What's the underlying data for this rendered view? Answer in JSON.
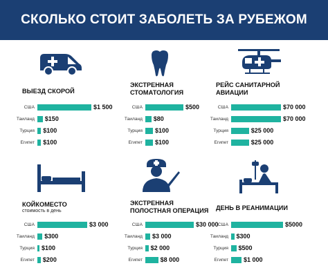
{
  "title": "СКОЛЬКО СТОИТ ЗАБОЛЕТЬ ЗА РУБЕЖОМ",
  "colors": {
    "banner": "#1b3f73",
    "bar": "#1fb3a0",
    "icon": "#1b3f73"
  },
  "chart_data": [
    {
      "type": "bar",
      "title": "ВЫЕЗД СКОРОЙ",
      "subtitle": "",
      "icon": "ambulance-icon",
      "categories": [
        "США",
        "Таиланд",
        "Турция",
        "Египет"
      ],
      "values": [
        1500,
        150,
        100,
        100
      ],
      "value_labels": [
        "$1 500",
        "$150",
        "$100",
        "$100"
      ]
    },
    {
      "type": "bar",
      "title": "ЭКСТРЕННАЯ СТОМАТОЛОГИЯ",
      "subtitle": "",
      "icon": "tooth-icon",
      "categories": [
        "США",
        "Таиланд",
        "Турция",
        "Египет"
      ],
      "values": [
        500,
        80,
        100,
        100
      ],
      "value_labels": [
        "$500",
        "$80",
        "$100",
        "$100"
      ]
    },
    {
      "type": "bar",
      "title": "РЕЙС САНИТАРНОЙ АВИАЦИИ",
      "subtitle": "",
      "icon": "helicopter-icon",
      "categories": [
        "США",
        "Таиланд",
        "Турция",
        "Египет"
      ],
      "values": [
        70000,
        70000,
        25000,
        25000
      ],
      "value_labels": [
        "$70 000",
        "$70 000",
        "$25 000",
        "$25 000"
      ]
    },
    {
      "type": "bar",
      "title": "КОЙКОМЕСТО",
      "subtitle": "стоимость в день",
      "icon": "bed-icon",
      "categories": [
        "США",
        "Таиланд",
        "Турция",
        "Египет"
      ],
      "values": [
        3000,
        300,
        100,
        200
      ],
      "value_labels": [
        "$3 000",
        "$300",
        "$100",
        "$200"
      ]
    },
    {
      "type": "bar",
      "title": "ЭКСТРЕННАЯ ПОЛОСТНАЯ ОПЕРАЦИЯ",
      "subtitle": "",
      "icon": "surgeon-icon",
      "categories": [
        "США",
        "Таиланд",
        "Турция",
        "Египет"
      ],
      "values": [
        30000,
        3000,
        2000,
        8000
      ],
      "value_labels": [
        "$30 000",
        "$3 000",
        "$2 000",
        "$8 000"
      ]
    },
    {
      "type": "bar",
      "title": "ДЕНЬ В РЕАНИМАЦИИ",
      "subtitle": "",
      "icon": "icu-patient-icon",
      "categories": [
        "США",
        "Таиланд",
        "Турция",
        "Египет"
      ],
      "values": [
        5000,
        300,
        500,
        1000
      ],
      "value_labels": [
        "$5000",
        "$300",
        "$500",
        "$1 000"
      ]
    }
  ]
}
